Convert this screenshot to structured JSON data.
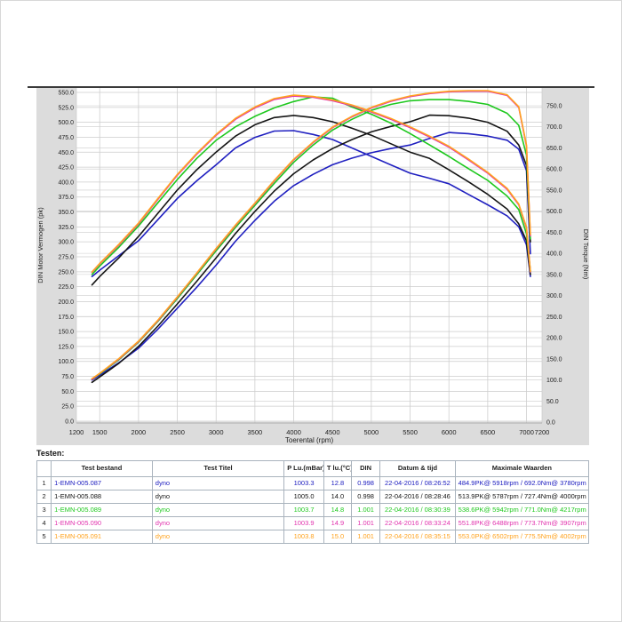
{
  "colors": {
    "band_gray": "#dcdcdc",
    "grid": "#cccccc",
    "plot_border": "#aaaaaa",
    "top_line": "#3a3a3a",
    "tick_text": "#222222",
    "table_border": "#a9b3bd"
  },
  "chart_data": {
    "type": "line",
    "xlabel": "Toerental (rpm)",
    "ylabel_left": "DIN Motor Vermogen (pk)",
    "ylabel_right": "DIN Torque (Nm)",
    "xlim": [
      1200,
      7200
    ],
    "x_ticks": [
      1200,
      1500,
      2000,
      2500,
      3000,
      3500,
      4000,
      4500,
      5000,
      5500,
      6000,
      6500,
      7000,
      7200
    ],
    "y_left": {
      "min": 0,
      "max": 550,
      "step": 25
    },
    "y_right": {
      "min": 0,
      "max": 750,
      "step": 50
    },
    "grid": true,
    "legend_position": "none",
    "rpm": [
      1400,
      1500,
      1750,
      2000,
      2250,
      2500,
      2750,
      3000,
      3250,
      3500,
      3750,
      4000,
      4250,
      4500,
      4750,
      5000,
      5250,
      5500,
      5750,
      6000,
      6250,
      6500,
      6750,
      6900,
      7000,
      7050
    ],
    "series": [
      {
        "name": "1-EMN-005.087",
        "color": "#2020c0",
        "power_pk": [
          69,
          77,
          98,
          122,
          154,
          189,
          224,
          261,
          301,
          336,
          368,
          394,
          413,
          429,
          440,
          449,
          456,
          462,
          473,
          483,
          481,
          477,
          470,
          455,
          419,
          280
        ],
        "torque_nm": [
          345,
          360,
          395,
          430,
          480,
          530,
          572,
          610,
          650,
          675,
          690,
          691,
          682,
          670,
          650,
          630,
          610,
          590,
          578,
          565,
          540,
          515,
          489,
          463,
          420,
          345
        ]
      },
      {
        "name": "1-EMN-005.088",
        "color": "#151515",
        "power_pk": [
          65,
          74,
          97,
          125,
          159,
          196,
          234,
          273,
          314,
          351,
          385,
          414,
          437,
          456,
          471,
          484,
          493,
          501,
          512,
          511,
          507,
          500,
          485,
          462,
          428,
          300
        ],
        "torque_nm": [
          325,
          345,
          390,
          440,
          495,
          550,
          598,
          640,
          678,
          705,
          722,
          727,
          722,
          712,
          697,
          680,
          660,
          640,
          625,
          598,
          570,
          540,
          505,
          470,
          430,
          350
        ]
      },
      {
        "name": "1-EMN-005.089",
        "color": "#1ec81e",
        "power_pk": [
          70,
          79,
          103,
          132,
          167,
          205,
          245,
          285,
          324,
          361,
          398,
          433,
          462,
          487,
          505,
          520,
          530,
          536,
          538,
          538,
          535,
          530,
          515,
          495,
          445,
          305
        ],
        "torque_nm": [
          350,
          370,
          415,
          465,
          520,
          575,
          625,
          668,
          700,
          725,
          745,
          760,
          771,
          768,
          747,
          730,
          709,
          684,
          657,
          630,
          601,
          573,
          536,
          504,
          446,
          358
        ]
      },
      {
        "name": "1-EMN-005.090",
        "color": "#e233ae",
        "power_pk": [
          70,
          80,
          104,
          133,
          168,
          207,
          247,
          288,
          327,
          364,
          402,
          437,
          466,
          491,
          509,
          524,
          535,
          543,
          548,
          551,
          552,
          552,
          545,
          525,
          460,
          310
        ],
        "torque_nm": [
          355,
          375,
          420,
          470,
          528,
          585,
          635,
          680,
          718,
          745,
          765,
          773,
          770,
          762,
          750,
          735,
          718,
          698,
          676,
          652,
          622,
          590,
          552,
          515,
          460,
          356
        ]
      },
      {
        "name": "1-EMN-005.091",
        "color": "#ffa320",
        "power_pk": [
          71,
          80,
          105,
          134,
          169,
          208,
          248,
          289,
          328,
          365,
          403,
          438,
          467,
          492,
          510,
          525,
          536,
          544,
          549,
          552,
          553,
          553,
          546,
          526,
          462,
          312
        ],
        "torque_nm": [
          356,
          376,
          422,
          472,
          530,
          587,
          637,
          682,
          720,
          747,
          767,
          775,
          772,
          764,
          752,
          737,
          720,
          700,
          678,
          654,
          624,
          592,
          554,
          517,
          462,
          357
        ]
      }
    ]
  },
  "table": {
    "section_label": "Testen:",
    "headers": [
      "",
      "Test bestand",
      "Test Titel",
      "P Lu.(mBar)",
      "T lu.(°C)",
      "DIN",
      "Datum & tijd",
      "Maximale Waarden"
    ],
    "rows": [
      {
        "num": "1",
        "file": "1-EMN-005.087",
        "title": "dyno",
        "p_lu": "1003.3",
        "t_lu": "12.8",
        "din": "0.998",
        "datetime": "22-04-2016 / 08:26:52",
        "max": "484.9PK@ 5918rpm / 692.0Nm@ 3780rpm",
        "color": "#2020c0"
      },
      {
        "num": "2",
        "file": "1-EMN-005.088",
        "title": "dyno",
        "p_lu": "1005.0",
        "t_lu": "14.0",
        "din": "0.998",
        "datetime": "22-04-2016 / 08:28:46",
        "max": "513.9PK@ 5787rpm / 727.4Nm@ 4000rpm",
        "color": "#151515"
      },
      {
        "num": "3",
        "file": "1-EMN-005.089",
        "title": "dyno",
        "p_lu": "1003.7",
        "t_lu": "14.8",
        "din": "1.001",
        "datetime": "22-04-2016 / 08:30:39",
        "max": "538.6PK@ 5942rpm / 771.0Nm@ 4217rpm",
        "color": "#1ec81e"
      },
      {
        "num": "4",
        "file": "1-EMN-005.090",
        "title": "dyno",
        "p_lu": "1003.9",
        "t_lu": "14.9",
        "din": "1.001",
        "datetime": "22-04-2016 / 08:33:24",
        "max": "551.8PK@ 6488rpm / 773.7Nm@ 3907rpm",
        "color": "#e233ae"
      },
      {
        "num": "5",
        "file": "1-EMN-005.091",
        "title": "dyno",
        "p_lu": "1003.8",
        "t_lu": "15.0",
        "din": "1.001",
        "datetime": "22-04-2016 / 08:35:15",
        "max": "553.0PK@ 6502rpm / 775.5Nm@ 4002rpm",
        "color": "#ffa320"
      }
    ]
  }
}
